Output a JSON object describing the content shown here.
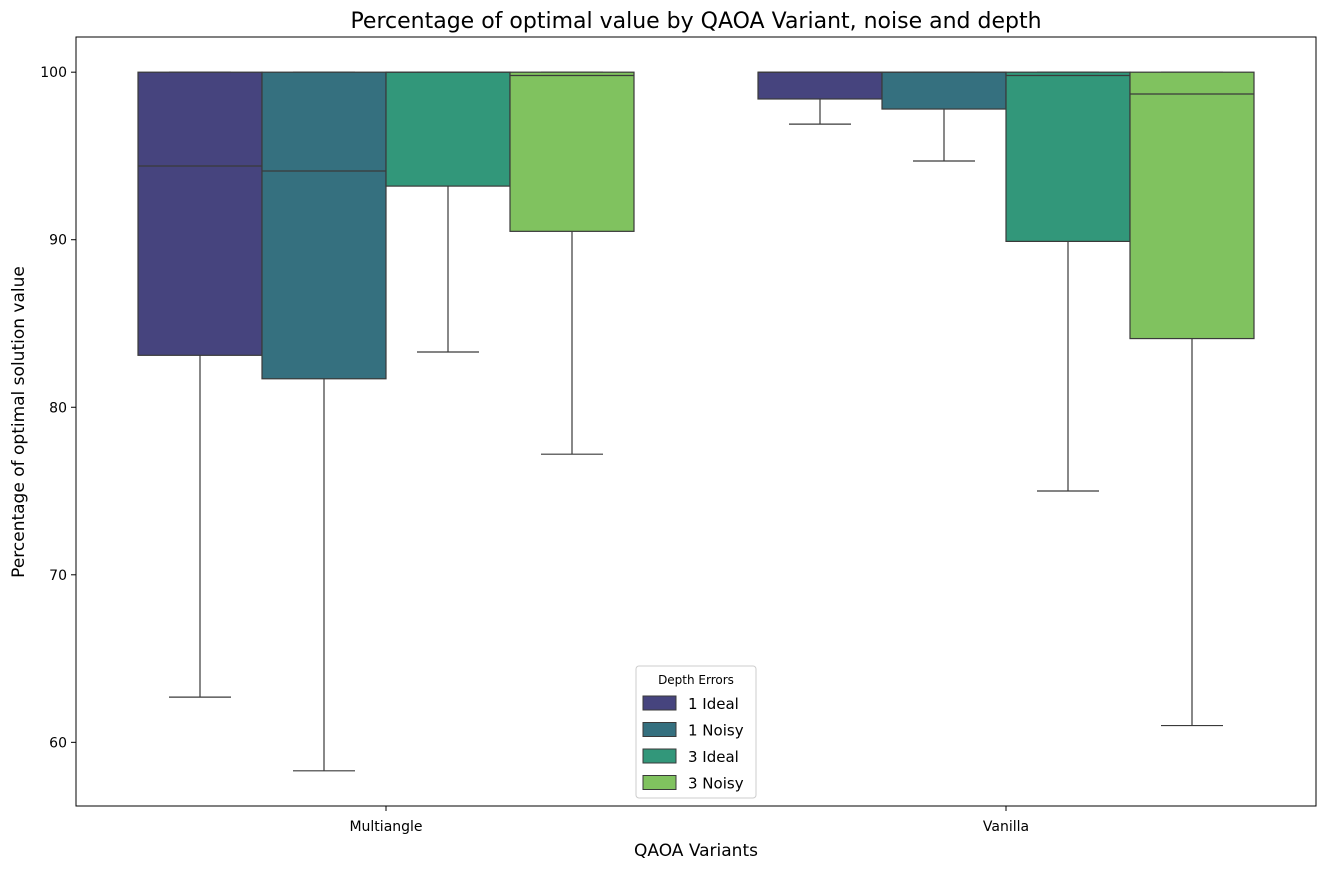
{
  "chart_data": {
    "type": "boxplot",
    "title": "Percentage of optimal value by QAOA Variant, noise and depth",
    "xlabel": "QAOA Variants",
    "ylabel": "Percentage of optimal solution value",
    "categories": [
      "Multiangle",
      "Vanilla"
    ],
    "ylim": [
      56.2,
      102.1
    ],
    "yticks": [
      60,
      70,
      80,
      90,
      100
    ],
    "grid": false,
    "legend": {
      "title": "Depth Errors",
      "placement": "lower-center"
    },
    "series": [
      {
        "name": "1 Ideal",
        "color": "#46447e",
        "boxes": [
          {
            "whisker_low": 62.7,
            "q1": 83.1,
            "median": 94.4,
            "q3": 100.0,
            "whisker_high": 100.0
          },
          {
            "whisker_low": 96.9,
            "q1": 98.4,
            "median": 100.0,
            "q3": 100.0,
            "whisker_high": 100.0
          }
        ]
      },
      {
        "name": "1 Noisy",
        "color": "#35707f",
        "boxes": [
          {
            "whisker_low": 58.3,
            "q1": 81.7,
            "median": 94.1,
            "q3": 100.0,
            "whisker_high": 100.0
          },
          {
            "whisker_low": 94.7,
            "q1": 97.8,
            "median": 100.0,
            "q3": 100.0,
            "whisker_high": 100.0
          }
        ]
      },
      {
        "name": "3 Ideal",
        "color": "#32977a",
        "boxes": [
          {
            "whisker_low": 83.3,
            "q1": 93.2,
            "median": 100.0,
            "q3": 100.0,
            "whisker_high": 100.0
          },
          {
            "whisker_low": 75.0,
            "q1": 89.9,
            "median": 99.8,
            "q3": 100.0,
            "whisker_high": 100.0
          }
        ]
      },
      {
        "name": "3 Noisy",
        "color": "#80c25f",
        "boxes": [
          {
            "whisker_low": 77.2,
            "q1": 90.5,
            "median": 99.8,
            "q3": 100.0,
            "whisker_high": 100.0
          },
          {
            "whisker_low": 61.0,
            "q1": 84.1,
            "median": 98.7,
            "q3": 100.0,
            "whisker_high": 100.0
          }
        ]
      }
    ]
  }
}
